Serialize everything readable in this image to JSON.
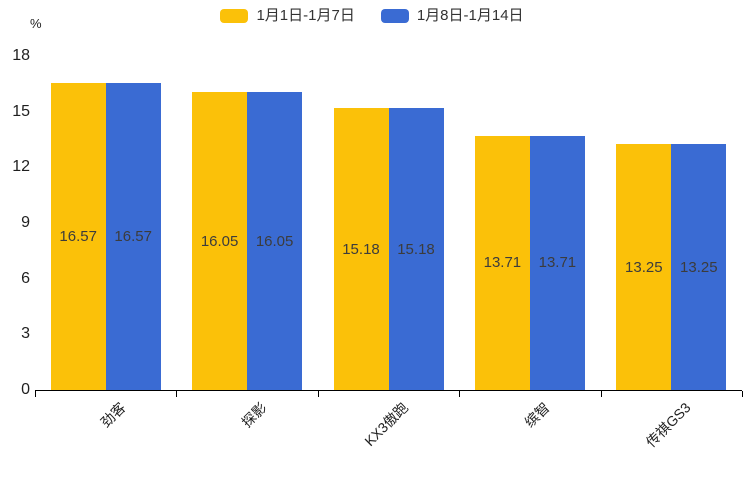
{
  "chart_data": {
    "type": "bar",
    "title": "",
    "xlabel": "",
    "ylabel": "%",
    "ylim": [
      0,
      18
    ],
    "yticks": [
      0,
      3,
      6,
      9,
      12,
      15,
      18
    ],
    "grid": false,
    "legend_position": "top",
    "value_labels_inside_bars": true,
    "categories": [
      "劲客",
      "探影",
      "KX3傲跑",
      "缤智",
      "传祺GS3"
    ],
    "series": [
      {
        "name": "1月1日-1月7日",
        "color": "#FBC109",
        "values": [
          16.57,
          16.05,
          15.18,
          13.71,
          13.25
        ]
      },
      {
        "name": "1月8日-1月14日",
        "color": "#3A6BD3",
        "values": [
          16.57,
          16.05,
          15.18,
          13.71,
          13.25
        ]
      }
    ],
    "colors": {
      "axis": "#000000",
      "tick_text": "#1f1f1f",
      "value_label_text": "#3c3c3c",
      "legend_text": "#333333",
      "background": "#ffffff"
    }
  }
}
